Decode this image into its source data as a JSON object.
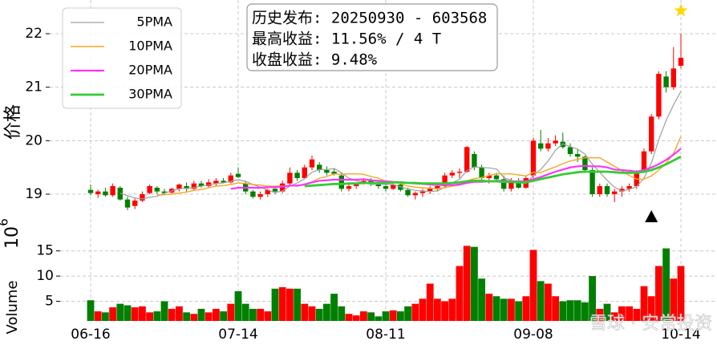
{
  "chart_data": [
    {
      "type": "candlestick",
      "y_label": "价格",
      "open": [
        19.08,
        19.0,
        19.05,
        18.98,
        19.12,
        18.9,
        18.78,
        18.88,
        19.02,
        19.12,
        19.05,
        19.03,
        19.1,
        19.15,
        19.1,
        19.2,
        19.15,
        19.2,
        19.25,
        19.22,
        19.38,
        19.2,
        19.05,
        18.95,
        19.0,
        19.1,
        19.05,
        19.2,
        19.4,
        19.3,
        19.5,
        19.55,
        19.45,
        19.42,
        19.35,
        19.1,
        19.15,
        19.2,
        19.25,
        19.2,
        19.15,
        19.1,
        19.18,
        19.08,
        18.98,
        19.02,
        19.05,
        19.1,
        19.15,
        19.35,
        19.4,
        19.42,
        19.75,
        19.5,
        19.3,
        19.35,
        19.28,
        19.1,
        19.25,
        19.12,
        19.35,
        19.95,
        19.85,
        19.95,
        19.98,
        19.88,
        19.75,
        19.7,
        19.45,
        19.0,
        19.15,
        19.0,
        19.05,
        19.1,
        19.15,
        19.45,
        19.8,
        20.45,
        21.2,
        21.0,
        21.4
      ],
      "high": [
        19.18,
        19.08,
        19.12,
        19.2,
        19.15,
        18.95,
        18.92,
        19.05,
        19.18,
        19.15,
        19.1,
        19.12,
        19.2,
        19.22,
        19.25,
        19.25,
        19.28,
        19.3,
        19.3,
        19.4,
        19.5,
        19.25,
        19.08,
        19.05,
        19.1,
        19.15,
        19.25,
        19.5,
        19.45,
        19.55,
        19.72,
        19.6,
        19.52,
        19.48,
        19.4,
        19.2,
        19.22,
        19.3,
        19.3,
        19.25,
        19.22,
        19.2,
        19.22,
        19.12,
        19.05,
        19.1,
        19.15,
        19.2,
        19.4,
        19.45,
        19.48,
        19.9,
        19.8,
        19.55,
        19.4,
        19.4,
        19.35,
        19.3,
        19.3,
        19.35,
        20.05,
        20.2,
        20.05,
        20.1,
        20.15,
        19.95,
        19.85,
        19.72,
        19.5,
        19.2,
        19.2,
        19.1,
        19.15,
        19.2,
        19.45,
        19.85,
        20.5,
        21.3,
        21.3,
        21.75,
        22.0
      ],
      "low": [
        18.98,
        18.93,
        18.95,
        18.95,
        18.88,
        18.7,
        18.72,
        18.85,
        19.0,
        19.0,
        18.98,
        19.0,
        19.05,
        19.05,
        19.08,
        19.12,
        19.12,
        19.15,
        19.2,
        19.2,
        19.3,
        19.0,
        18.92,
        18.9,
        18.95,
        19.0,
        19.02,
        19.15,
        19.25,
        19.28,
        19.45,
        19.4,
        19.35,
        19.35,
        19.05,
        19.05,
        19.1,
        19.18,
        19.15,
        19.1,
        19.05,
        19.08,
        19.05,
        18.95,
        18.9,
        18.95,
        19.0,
        19.05,
        19.12,
        19.3,
        19.3,
        19.4,
        19.45,
        19.25,
        19.2,
        19.25,
        19.05,
        19.05,
        19.1,
        19.1,
        19.3,
        19.8,
        19.8,
        19.9,
        19.85,
        19.7,
        19.6,
        19.4,
        18.95,
        18.95,
        18.95,
        18.85,
        18.95,
        19.05,
        19.1,
        19.4,
        19.75,
        20.4,
        20.9,
        20.95,
        21.35
      ],
      "close": [
        19.02,
        19.05,
        18.98,
        19.15,
        18.9,
        18.75,
        18.88,
        19.0,
        19.15,
        19.05,
        19.02,
        19.1,
        19.18,
        19.1,
        19.2,
        19.15,
        19.22,
        19.25,
        19.22,
        19.35,
        19.32,
        19.05,
        18.95,
        19.0,
        19.08,
        19.05,
        19.2,
        19.4,
        19.3,
        19.5,
        19.65,
        19.45,
        19.4,
        19.38,
        19.1,
        19.15,
        19.2,
        19.25,
        19.2,
        19.15,
        19.1,
        19.18,
        19.08,
        18.98,
        19.02,
        19.05,
        19.1,
        19.15,
        19.35,
        19.4,
        19.42,
        19.88,
        19.5,
        19.3,
        19.35,
        19.28,
        19.1,
        19.25,
        19.12,
        19.3,
        20.0,
        19.85,
        19.95,
        20.0,
        19.88,
        19.75,
        19.7,
        19.45,
        19.0,
        19.15,
        19.0,
        19.05,
        19.1,
        19.15,
        19.4,
        19.8,
        20.45,
        21.25,
        21.0,
        21.35,
        21.55
      ],
      "up_color": "#ff0000",
      "down_color": "#008000",
      "series": [
        {
          "name": "5PMA",
          "color": "#a0a0a0",
          "width": 1.2,
          "values": [
            null,
            null,
            null,
            null,
            19.02,
            18.97,
            18.93,
            18.91,
            18.94,
            18.96,
            19.02,
            19.06,
            19.1,
            19.11,
            19.12,
            19.15,
            19.17,
            19.2,
            19.21,
            19.24,
            19.27,
            19.24,
            19.18,
            19.13,
            19.08,
            19.03,
            19.06,
            19.15,
            19.21,
            19.29,
            19.41,
            19.46,
            19.46,
            19.48,
            19.4,
            19.3,
            19.25,
            19.22,
            19.18,
            19.19,
            19.18,
            19.18,
            19.14,
            19.1,
            19.07,
            19.06,
            19.05,
            19.06,
            19.13,
            19.21,
            19.28,
            19.44,
            19.51,
            19.5,
            19.49,
            19.47,
            19.31,
            19.26,
            19.22,
            19.2,
            19.35,
            19.46,
            19.62,
            19.82,
            19.94,
            19.89,
            19.84,
            19.75,
            19.56,
            19.41,
            19.26,
            19.13,
            19.06,
            19.09,
            19.14,
            19.3,
            19.58,
            20.02,
            20.38,
            20.67,
            20.92
          ]
        },
        {
          "name": "10PMA",
          "color": "#f5a623",
          "width": 1.4,
          "values": [
            null,
            null,
            null,
            null,
            null,
            null,
            null,
            null,
            null,
            18.98,
            18.99,
            19.0,
            19.02,
            19.04,
            19.07,
            19.09,
            19.12,
            19.15,
            19.16,
            19.18,
            19.21,
            19.2,
            19.18,
            19.17,
            19.15,
            19.15,
            19.15,
            19.16,
            19.15,
            19.19,
            19.23,
            19.3,
            19.33,
            19.38,
            19.37,
            19.38,
            19.38,
            19.37,
            19.33,
            19.3,
            19.24,
            19.22,
            19.2,
            19.15,
            19.13,
            19.12,
            19.11,
            19.1,
            19.12,
            19.15,
            19.17,
            19.25,
            19.29,
            19.31,
            19.35,
            19.38,
            19.38,
            19.38,
            19.36,
            19.34,
            19.41,
            19.4,
            19.46,
            19.51,
            19.57,
            19.62,
            19.65,
            19.68,
            19.68,
            19.68,
            19.6,
            19.52,
            19.44,
            19.35,
            19.28,
            19.28,
            19.34,
            19.45,
            19.58,
            19.76,
            20.08
          ]
        },
        {
          "name": "20PMA",
          "color": "#ff33ff",
          "width": 2.2,
          "values": [
            null,
            null,
            null,
            null,
            null,
            null,
            null,
            null,
            null,
            null,
            null,
            null,
            null,
            null,
            null,
            null,
            null,
            null,
            null,
            19.1,
            19.12,
            19.12,
            19.12,
            19.12,
            19.13,
            19.13,
            19.14,
            19.16,
            19.16,
            19.18,
            19.22,
            19.25,
            19.26,
            19.27,
            19.27,
            19.27,
            19.27,
            19.28,
            19.26,
            19.25,
            19.24,
            19.23,
            19.22,
            19.21,
            19.2,
            19.19,
            19.18,
            19.17,
            19.17,
            19.17,
            19.18,
            19.21,
            19.23,
            19.23,
            19.24,
            19.25,
            19.25,
            19.24,
            19.24,
            19.24,
            19.28,
            19.32,
            19.37,
            19.42,
            19.46,
            19.5,
            19.52,
            19.53,
            19.52,
            19.52,
            19.5,
            19.46,
            19.45,
            19.44,
            19.42,
            19.45,
            19.5,
            19.56,
            19.64,
            19.74,
            19.85
          ]
        },
        {
          "name": "30PMA",
          "color": "#33cc33",
          "width": 2.8,
          "values": [
            null,
            null,
            null,
            null,
            null,
            null,
            null,
            null,
            null,
            null,
            null,
            null,
            null,
            null,
            null,
            null,
            null,
            null,
            null,
            null,
            null,
            null,
            null,
            null,
            null,
            null,
            null,
            null,
            null,
            19.15,
            19.16,
            19.17,
            19.18,
            19.19,
            19.19,
            19.2,
            19.2,
            19.21,
            19.21,
            19.21,
            19.21,
            19.22,
            19.22,
            19.21,
            19.21,
            19.2,
            19.2,
            19.2,
            19.2,
            19.21,
            19.22,
            19.24,
            19.25,
            19.25,
            19.24,
            19.24,
            19.23,
            19.23,
            19.22,
            19.22,
            19.25,
            19.28,
            19.31,
            19.34,
            19.37,
            19.39,
            19.41,
            19.42,
            19.42,
            19.42,
            19.42,
            19.41,
            19.4,
            19.4,
            19.4,
            19.42,
            19.45,
            19.5,
            19.56,
            19.63,
            19.7
          ]
        }
      ],
      "ylim": [
        18.28,
        22.63
      ],
      "yticks": [
        19,
        20,
        21,
        22
      ],
      "grid": true,
      "legend": "upper left",
      "annotation": [
        "历史发布: 20250930 - 603568",
        "最高收益: 11.56% / 4 T",
        "收盘收益: 9.48%"
      ],
      "markers": [
        {
          "shape": "star",
          "index": 80,
          "value": 22.43,
          "color": "#ffd700"
        },
        {
          "shape": "triangle",
          "index": 76,
          "value": 18.58,
          "color": "#000000"
        }
      ]
    },
    {
      "type": "bar",
      "y_label": "Volume",
      "scale_base": "10",
      "scale_exponent": "6",
      "categories": [
        "06-16",
        null,
        null,
        null,
        null,
        null,
        null,
        null,
        null,
        null,
        null,
        null,
        null,
        null,
        null,
        null,
        null,
        null,
        null,
        null,
        "07-14",
        null,
        null,
        null,
        null,
        null,
        null,
        null,
        null,
        null,
        null,
        null,
        null,
        null,
        null,
        null,
        null,
        null,
        null,
        null,
        "08-11",
        null,
        null,
        null,
        null,
        null,
        null,
        null,
        null,
        null,
        null,
        null,
        null,
        null,
        null,
        null,
        null,
        null,
        null,
        null,
        "09-08",
        null,
        null,
        null,
        null,
        null,
        null,
        null,
        null,
        null,
        null,
        null,
        null,
        null,
        null,
        null,
        null,
        null,
        null,
        null,
        "10-14"
      ],
      "values": [
        5.2,
        3.0,
        2.8,
        3.8,
        4.5,
        4.2,
        3.8,
        4.0,
        2.8,
        3.0,
        5.0,
        3.5,
        4.0,
        2.8,
        2.5,
        3.5,
        2.8,
        3.5,
        3.0,
        4.5,
        7.0,
        4.5,
        3.5,
        3.5,
        3.0,
        7.5,
        7.8,
        7.5,
        7.5,
        4.5,
        4.0,
        3.5,
        4.5,
        6.5,
        4.0,
        2.5,
        2.2,
        3.0,
        2.8,
        2.0,
        3.0,
        3.2,
        3.0,
        4.0,
        4.5,
        5.5,
        8.5,
        5.5,
        5.0,
        5.5,
        12.0,
        16.0,
        15.8,
        9.5,
        6.5,
        6.0,
        5.5,
        5.5,
        5.0,
        6.0,
        15.2,
        9.0,
        8.5,
        6.0,
        5.0,
        5.2,
        5.2,
        4.8,
        10.0,
        3.5,
        4.5,
        2.8,
        4.0,
        4.0,
        3.5,
        8.0,
        6.0,
        12.0,
        15.5,
        9.5,
        12.0
      ],
      "ylim": [
        1.1,
        17.5
      ],
      "yticks": [
        5,
        10,
        15
      ],
      "grid": true,
      "watermark": "雪球 · 安常投资"
    }
  ]
}
